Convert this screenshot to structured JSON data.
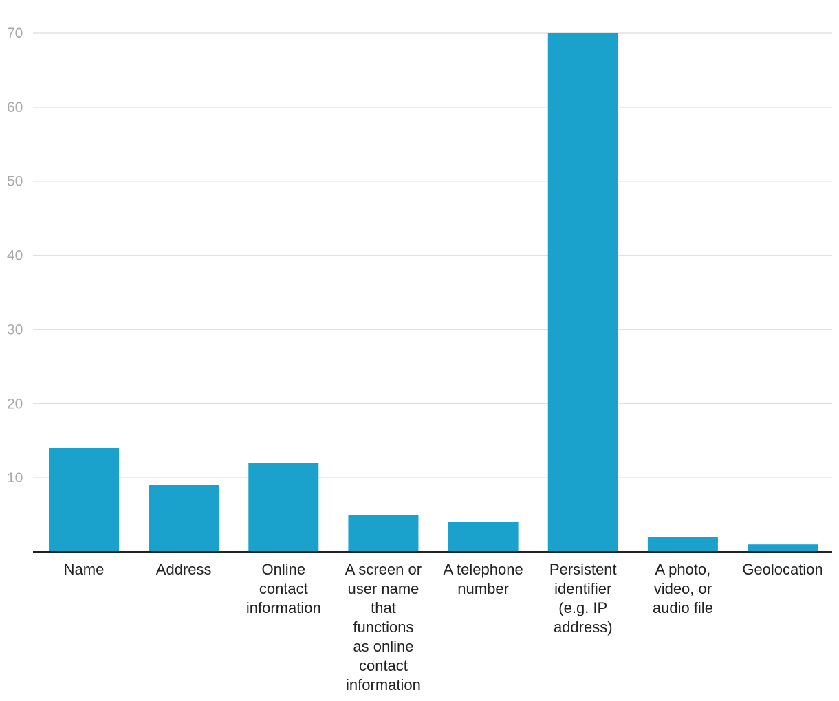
{
  "chart_data": {
    "type": "bar",
    "title": "",
    "xlabel": "",
    "ylabel": "",
    "categories": [
      [
        "Name"
      ],
      [
        "Address"
      ],
      [
        "Online",
        "contact",
        "information"
      ],
      [
        "A screen or",
        "user name",
        "that",
        "functions",
        "as online",
        "contact",
        "information"
      ],
      [
        "A telephone",
        "number"
      ],
      [
        "Persistent",
        "identifier",
        "(e.g. IP",
        "address)"
      ],
      [
        "A photo,",
        "video, or",
        "audio file"
      ],
      [
        "Geolocation"
      ]
    ],
    "values": [
      14,
      9,
      12,
      5,
      4,
      70,
      2,
      1
    ],
    "ylim": [
      0,
      70
    ],
    "yticks": [
      10,
      20,
      30,
      40,
      50,
      60,
      70
    ],
    "grid": true,
    "legend": "none",
    "colors": {
      "bar": "#1aa1cc",
      "grid": "#e2e2e2",
      "axis": "#222222",
      "tick_text": "#a9a9a9",
      "label_text": "#222222"
    }
  }
}
